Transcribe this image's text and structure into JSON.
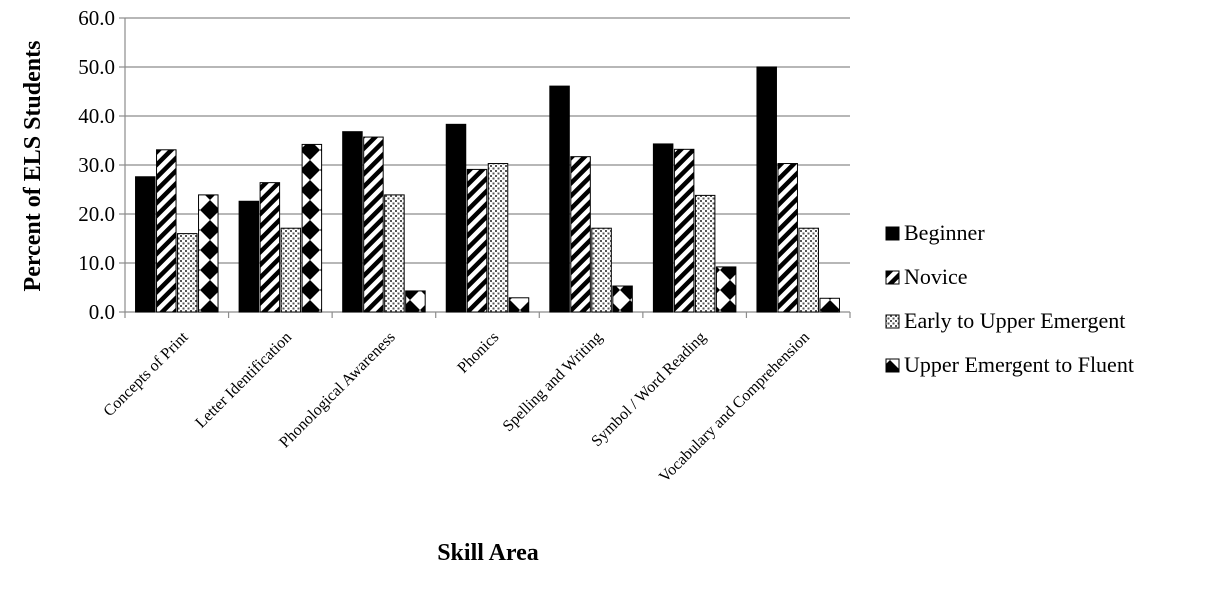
{
  "chart_data": {
    "type": "bar",
    "title": "",
    "xlabel": "Skill Area",
    "ylabel": "Percent of ELS Students",
    "ylim": [
      0,
      60
    ],
    "yticks": [
      "0.0",
      "10.0",
      "20.0",
      "30.0",
      "40.0",
      "50.0",
      "60.0"
    ],
    "grid": true,
    "legend_position": "right",
    "categories": [
      "Concepts of Print",
      "Letter Identification",
      "Phonological Awareness",
      "Phonics",
      "Spelling and Writing",
      "Symbol / Word Reading",
      "Vocabulary and Comprehension"
    ],
    "series": [
      {
        "name": "Beginner",
        "pattern": "solid",
        "values": [
          27.6,
          22.6,
          36.8,
          38.3,
          46.1,
          34.3,
          50.0
        ]
      },
      {
        "name": "Novice",
        "pattern": "diagonal-stripes",
        "values": [
          33.1,
          26.4,
          35.7,
          29.1,
          31.7,
          33.2,
          30.3
        ]
      },
      {
        "name": "Early to Upper Emergent",
        "pattern": "dots",
        "values": [
          16.0,
          17.1,
          23.9,
          30.3,
          17.1,
          23.8,
          17.1
        ]
      },
      {
        "name": "Upper Emergent to Fluent",
        "pattern": "diamonds",
        "values": [
          23.9,
          34.2,
          4.3,
          2.9,
          5.3,
          9.2,
          2.8
        ]
      }
    ]
  }
}
